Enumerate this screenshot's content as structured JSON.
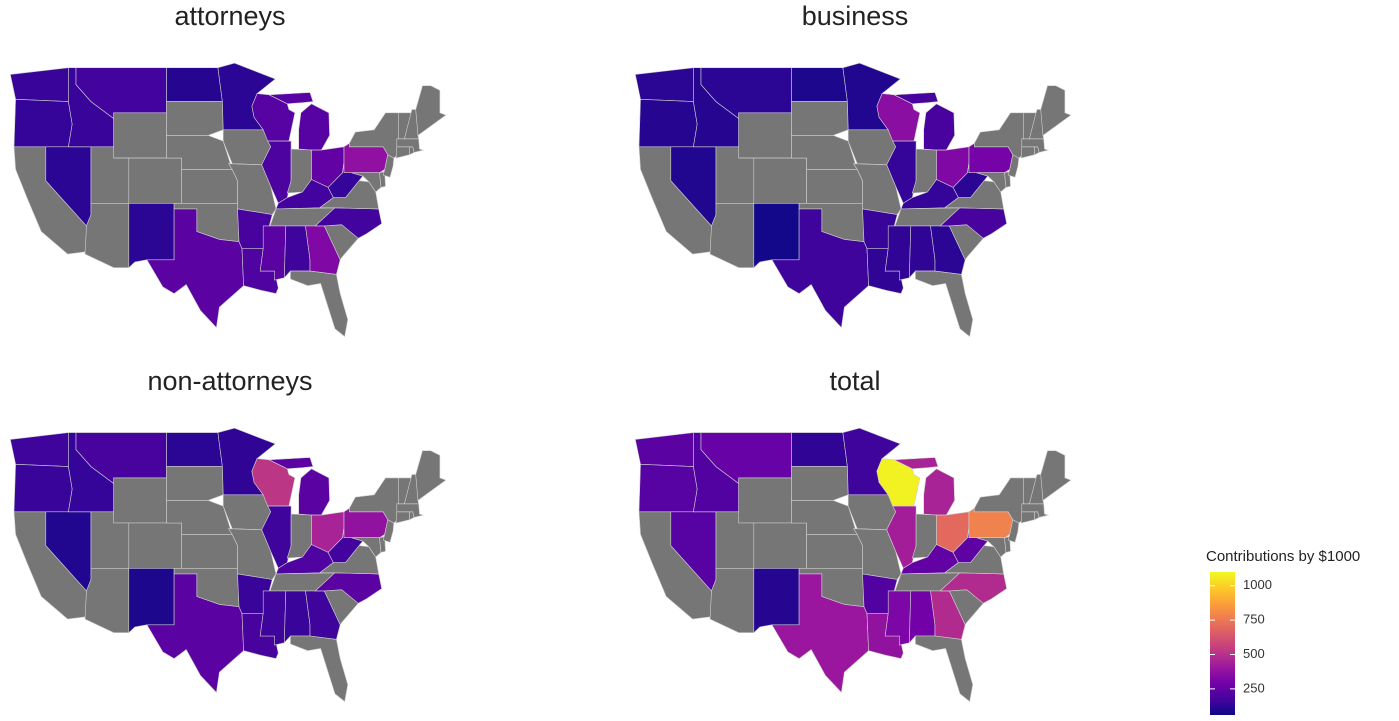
{
  "chart_data": {
    "type": "choropleth",
    "legend_title": "Contributions by $1000",
    "clim": [
      60,
      1100
    ],
    "cticks": [
      250,
      500,
      750,
      1000
    ],
    "colors": [
      "#0d0887",
      "#46039f",
      "#7201a8",
      "#9c179e",
      "#bd3786",
      "#d8576b",
      "#ed7953",
      "#fb9f3a",
      "#fdca26",
      "#f0f921"
    ],
    "na_color": "#767676",
    "panels": [
      {
        "title": "attorneys",
        "values": [
          150,
          140,
          null,
          120,
          150,
          170,
          null,
          null,
          null,
          null,
          120,
          110,
          null,
          null,
          null,
          null,
          230,
          120,
          null,
          null,
          180,
          200,
          220,
          190,
          220,
          null,
          250,
          170,
          null,
          230,
          160,
          330,
          null,
          null,
          170,
          null,
          140,
          370,
          null,
          null,
          null,
          null,
          null,
          null,
          null,
          null,
          null,
          null
        ]
      },
      {
        "title": "business",
        "values": [
          120,
          110,
          null,
          100,
          110,
          120,
          null,
          null,
          null,
          null,
          70,
          90,
          null,
          null,
          null,
          null,
          160,
          100,
          null,
          null,
          150,
          130,
          360,
          140,
          180,
          null,
          330,
          140,
          null,
          130,
          130,
          120,
          null,
          null,
          180,
          null,
          120,
          300,
          null,
          null,
          null,
          null,
          null,
          null,
          null,
          null,
          null,
          null
        ]
      },
      {
        "title": "non-attorneys",
        "values": [
          160,
          150,
          null,
          100,
          140,
          180,
          null,
          null,
          null,
          null,
          90,
          120,
          null,
          null,
          null,
          null,
          230,
          130,
          null,
          null,
          150,
          180,
          520,
          160,
          230,
          null,
          450,
          200,
          null,
          160,
          150,
          160,
          null,
          null,
          230,
          null,
          170,
          380,
          null,
          null,
          null,
          null,
          null,
          null,
          null,
          null,
          null,
          null
        ]
      },
      {
        "title": "total",
        "values": [
          230,
          220,
          null,
          220,
          210,
          260,
          null,
          null,
          null,
          null,
          110,
          130,
          null,
          null,
          null,
          null,
          400,
          160,
          null,
          null,
          210,
          380,
          1080,
          430,
          450,
          null,
          700,
          250,
          null,
          320,
          290,
          480,
          null,
          null,
          480,
          null,
          240,
          780,
          null,
          null,
          null,
          null,
          null,
          null,
          null,
          null,
          null,
          null
        ]
      }
    ]
  }
}
